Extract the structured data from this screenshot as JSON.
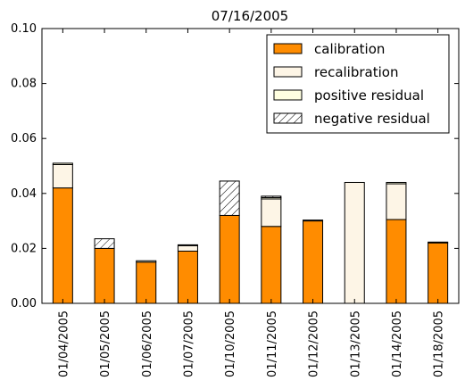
{
  "chart_data": {
    "type": "bar",
    "stacked": true,
    "title": "07/16/2005",
    "xlabel": "",
    "ylabel": "",
    "ylim": [
      0,
      0.1
    ],
    "yticks": [
      0.0,
      0.02,
      0.04,
      0.06,
      0.08,
      0.1
    ],
    "ytick_labels": [
      "0.00",
      "0.02",
      "0.04",
      "0.06",
      "0.08",
      "0.10"
    ],
    "categories": [
      "01/04/2005",
      "01/05/2005",
      "01/06/2005",
      "01/07/2005",
      "01/10/2005",
      "01/11/2005",
      "01/12/2005",
      "01/13/2005",
      "01/14/2005",
      "01/18/2005"
    ],
    "series": [
      {
        "name": "calibration",
        "color": "#ff8c00",
        "pattern": "solid",
        "values": [
          0.042,
          0.02,
          0.015,
          0.019,
          0.032,
          0.028,
          0.03,
          0.0,
          0.0305,
          0.022
        ]
      },
      {
        "name": "recalibration",
        "color": "#fdf5e6",
        "pattern": "solid",
        "values": [
          0.0085,
          0.0,
          0.0,
          0.002,
          0.0,
          0.01,
          0.0,
          0.044,
          0.013,
          0.0
        ]
      },
      {
        "name": "positive residual",
        "color": "#ffffe0",
        "pattern": "solid",
        "values": [
          0.0005,
          0.0,
          0.0005,
          0.0003,
          0.0,
          0.0005,
          0.0003,
          0.0,
          0.0005,
          0.0003
        ]
      },
      {
        "name": "negative residual",
        "color": "#ffffff",
        "pattern": "hatch",
        "values": [
          0.0,
          0.0035,
          0.0,
          0.0,
          0.0125,
          0.0005,
          0.0,
          0.0,
          0.0,
          0.0
        ]
      }
    ],
    "legend": {
      "position": "top-right"
    },
    "grid": false
  }
}
